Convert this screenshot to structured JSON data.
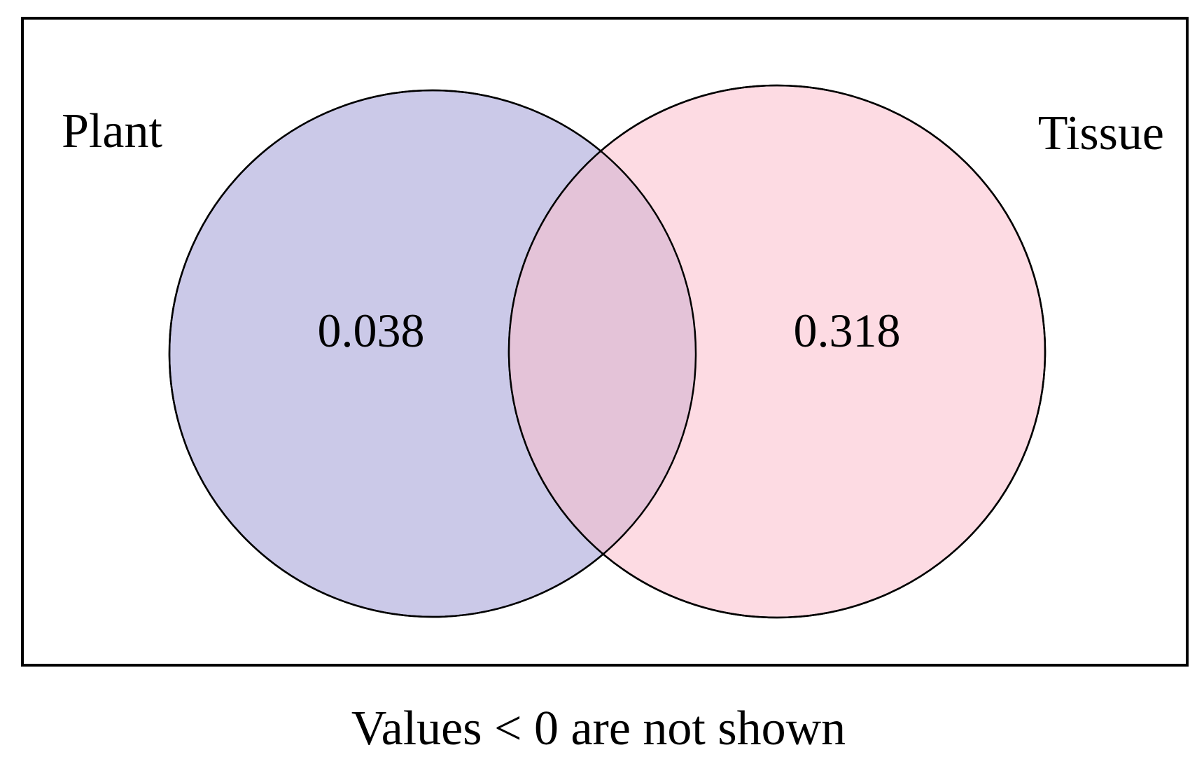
{
  "diagram": {
    "type": "venn",
    "sets": [
      {
        "label": "Plant",
        "fill": "#cbc9e8"
      },
      {
        "label": "Tissue",
        "fill": "#fddbe3"
      }
    ],
    "overlap_fill": "#e4c3d8",
    "outline_color": "#000000",
    "regions": {
      "plant_only": "0.038",
      "tissue_only": "0.318"
    },
    "footnote": "Values < 0 are not shown"
  }
}
